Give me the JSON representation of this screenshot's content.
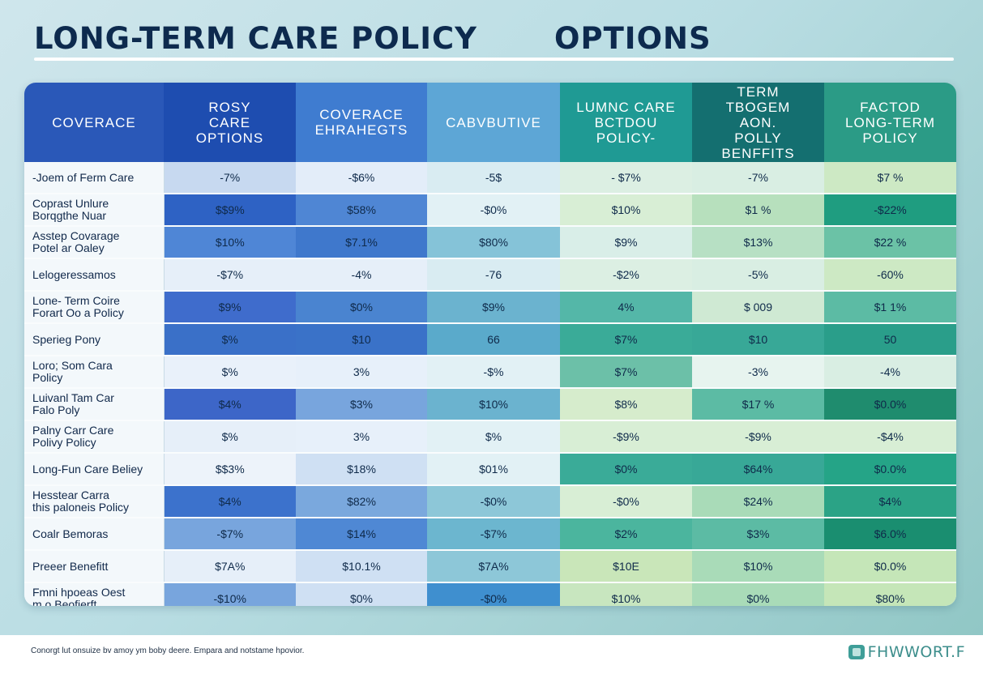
{
  "header": {
    "title_left": "LONG-TERM CARE POLICY",
    "title_right": "OPTIONS"
  },
  "table": {
    "columns": [
      {
        "label": "COVERACE",
        "bg": "#2a58b8"
      },
      {
        "label": "ROSY\nCARE\nOPTIONS",
        "bg": "#1e4db0"
      },
      {
        "label": "COVERACE\nEHRAHEGTS",
        "bg": "#3f7cd0"
      },
      {
        "label": "CABVBUTIVE",
        "bg": "#5da6d6"
      },
      {
        "label": "LUMNC CARE\nBCTDOU\nPOLICY-",
        "bg": "#1f9a94"
      },
      {
        "label": "TERM\nTBOGEM\nAON.\nPOLLY\nBENFFITS",
        "bg": "#146f70"
      },
      {
        "label": "FACTOD\nLONG-TERM\nPOLICY",
        "bg": "#2b9b86"
      }
    ],
    "column_palettes": [
      [
        "#c7d9f0",
        "#2e62c4",
        "#4f86d6",
        "#e6eff9",
        "#3f6ccc",
        "#3a70c8",
        "#e9f1fa",
        "#3d66c8",
        "#e6eff9",
        "#edf3fa",
        "#3c72cc",
        "#78a5dd",
        "#e6eff9",
        "#78a5dd"
      ],
      [
        "#e3edf9",
        "#4f86d4",
        "#3f78cc",
        "#e6eff9",
        "#4a84d0",
        "#3a72c8",
        "#e7f0fa",
        "#78a5dd",
        "#e7f0fa",
        "#cfe0f3",
        "#7aa8dd",
        "#4f88d4",
        "#cfe0f3",
        "#cfe0f3"
      ],
      [
        "#d9ecf2",
        "#e2f1f5",
        "#85c3d8",
        "#d9ecf2",
        "#6bb3cf",
        "#5aaacb",
        "#e2f1f5",
        "#6bb3cf",
        "#e2f1f5",
        "#e2f1f5",
        "#8dc7d8",
        "#6cb6cf",
        "#8dc7d8",
        "#3f8fcf"
      ],
      [
        "#dcefe3",
        "#d8eed5",
        "#d9eee8",
        "#dcefe3",
        "#54b7a8",
        "#3aab98",
        "#6cc0a8",
        "#d6eccc",
        "#d8eed5",
        "#3aab98",
        "#d8eed5",
        "#4bb59e",
        "#c9e6b9",
        "#c8e6bf"
      ],
      [
        "#d9eee3",
        "#b7e0bd",
        "#b7e0c4",
        "#d9eee3",
        "#cfe9d3",
        "#38a897",
        "#e7f4ef",
        "#5cbba4",
        "#d8eed5",
        "#38a897",
        "#a9dbb8",
        "#5cbba4",
        "#a9dbb8",
        "#a9dbb8"
      ],
      [
        "#cde9c4",
        "#1f9d80",
        "#6bc2a6",
        "#cde9c4",
        "#5cbba4",
        "#2a9e8a",
        "#d9eee3",
        "#1f8c6e",
        "#d8eed5",
        "#25a487",
        "#2ba386",
        "#1a8e70",
        "#c5e6b8",
        "#c5e6b8"
      ]
    ],
    "rows": [
      {
        "label": "-Joem of Ferm Care",
        "cells": [
          "-7%",
          "-$6%",
          "-5$",
          "- $7%",
          "-7%",
          "$7 %"
        ]
      },
      {
        "label": "Coprast Unlure\nBorqgthe Nuar",
        "cells": [
          "$$9%",
          "$58%",
          "-$0%",
          "$10%",
          "$1 %",
          "-$22%"
        ]
      },
      {
        "label": "Asstep Covarage\nPotel ar Oaley",
        "cells": [
          "$10%",
          "$7.1%",
          "$80%",
          "$9%",
          "$13%",
          "$22 %"
        ]
      },
      {
        "label": "Lelogeressamos",
        "cells": [
          "-$7%",
          "-4%",
          "-76",
          "-$2%",
          "-5%",
          "-60%"
        ]
      },
      {
        "label": "Lone- Term Coire\nForart Oo a Policy",
        "cells": [
          "$9%",
          "$0%",
          "$9%",
          "4%",
          "$ 009",
          "$1 1%"
        ]
      },
      {
        "label": "Sperieg Pony",
        "cells": [
          "$%",
          "$10",
          "66",
          "$7%",
          "$10",
          "50"
        ]
      },
      {
        "label": "Loro; Som Cara\nPolicy",
        "cells": [
          "$%",
          "3%",
          "-$%",
          "$7%",
          "-3%",
          "-4%"
        ]
      },
      {
        "label": "Luivanl Tam Car\nFalo Poly",
        "cells": [
          "$4%",
          "$3%",
          "$10%",
          "$8%",
          "$17 %",
          "$0.0%"
        ]
      },
      {
        "label": "Palny Carr Care\nPolivy Policy",
        "cells": [
          "$%",
          "3%",
          "$%",
          "-$9%",
          "-$9%",
          "-$4%"
        ]
      },
      {
        "label": "Long-Fun Care Beliey",
        "cells": [
          "$$3%",
          "$18%",
          "$01%",
          "$0%",
          "$64%",
          "$0.0%"
        ]
      },
      {
        "label": "Hesstear Carra\nthis paloneis Policy",
        "cells": [
          "$4%",
          "$82%",
          "-$0%",
          "-$0%",
          "$24%",
          "$4%"
        ]
      },
      {
        "label": "Coalr Bemoras",
        "cells": [
          "-$7%",
          "$14%",
          "-$7%",
          "$2%",
          "$3%",
          "$6.0%"
        ]
      },
      {
        "label": "Preeer Benefitt",
        "cells": [
          "$7A%",
          "$10.1%",
          "$7A%",
          "$10E",
          "$10%",
          "$0.0%"
        ]
      },
      {
        "label": "Fmni hpoeas Oest\nm o Beofierft",
        "cells": [
          "-$10%",
          "$0%",
          "-$0%",
          "$10%",
          "$0%",
          "$80%"
        ]
      }
    ]
  },
  "footer": {
    "note": "Conorgt lut onsuize bv amoy ym boby deere. Empara and notstame hpovior.",
    "brand": "FHWWORT.F",
    "brand_icon": "brand-mark-icon"
  }
}
